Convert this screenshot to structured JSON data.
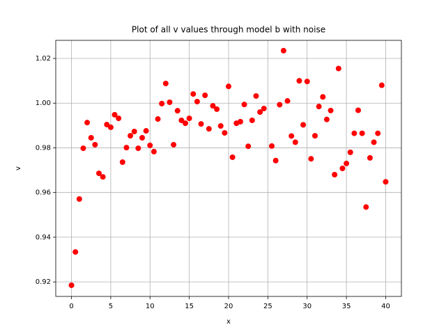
{
  "chart_data": {
    "type": "scatter",
    "title": "Plot of all v values through model b with noise",
    "x_label": "x",
    "y_label": "v",
    "series": [
      {
        "color": "#ff0000",
        "x": [
          0,
          0.5,
          1,
          1.5,
          2,
          2.5,
          3,
          3.5,
          4,
          4.5,
          5,
          5.5,
          6,
          6.5,
          7,
          7.5,
          8,
          8.5,
          9,
          9.5,
          10,
          10.5,
          11,
          11.5,
          12,
          12.5,
          13,
          13.5,
          14,
          14.5,
          15,
          15.5,
          16,
          16.5,
          17,
          17.5,
          18,
          18.5,
          19,
          19.5,
          20,
          20.5,
          21,
          21.5,
          22,
          22.5,
          23,
          23.5,
          24,
          24.5,
          25.5,
          26,
          26.5,
          27,
          27.5,
          28,
          28.5,
          29,
          29.5,
          30,
          30.5,
          31,
          31.5,
          32,
          32.5,
          33,
          33.5,
          34,
          34.5,
          35,
          35.5,
          36,
          36.5,
          37,
          37.5,
          38,
          38.5,
          39,
          39.5,
          40
        ],
        "values": [
          0.9185,
          0.9334,
          0.9571,
          0.9798,
          0.9913,
          0.9845,
          0.9814,
          0.9686,
          0.967,
          0.9904,
          0.9892,
          0.9948,
          0.9932,
          0.9736,
          0.9801,
          0.9854,
          0.9873,
          0.9798,
          0.9845,
          0.9876,
          0.9811,
          0.9783,
          0.9929,
          0.9998,
          1.0088,
          1.0004,
          0.9814,
          0.9966,
          0.9923,
          0.991,
          0.9932,
          1.0041,
          1.0007,
          0.9907,
          1.0035,
          0.9885,
          0.9988,
          0.9973,
          0.9898,
          0.9867,
          1.0075,
          0.9758,
          0.991,
          0.9917,
          0.9994,
          0.9807,
          0.9923,
          1.0032,
          0.996,
          0.9976,
          0.9808,
          0.9743,
          0.9993,
          1.0235,
          1.001,
          0.9853,
          0.9825,
          1.01,
          0.9903,
          1.0097,
          0.9751,
          0.9854,
          0.9985,
          1.0028,
          0.9927,
          0.9967,
          0.968,
          1.0155,
          0.9708,
          0.973,
          0.978,
          0.9865,
          0.9968,
          0.9865,
          0.9535,
          0.9755,
          0.9825,
          0.9865,
          1.008,
          0.9648
        ]
      }
    ],
    "xlim": [
      -2,
      42
    ],
    "xticks": [
      0,
      5,
      10,
      15,
      20,
      25,
      30,
      35,
      40
    ],
    "ylim": [
      0.9135,
      1.0281
    ],
    "yticks": [
      0.92,
      0.94,
      0.96,
      0.98,
      {
        "value": 1,
        "label": "1.00"
      },
      1.02
    ],
    "grid": true
  }
}
